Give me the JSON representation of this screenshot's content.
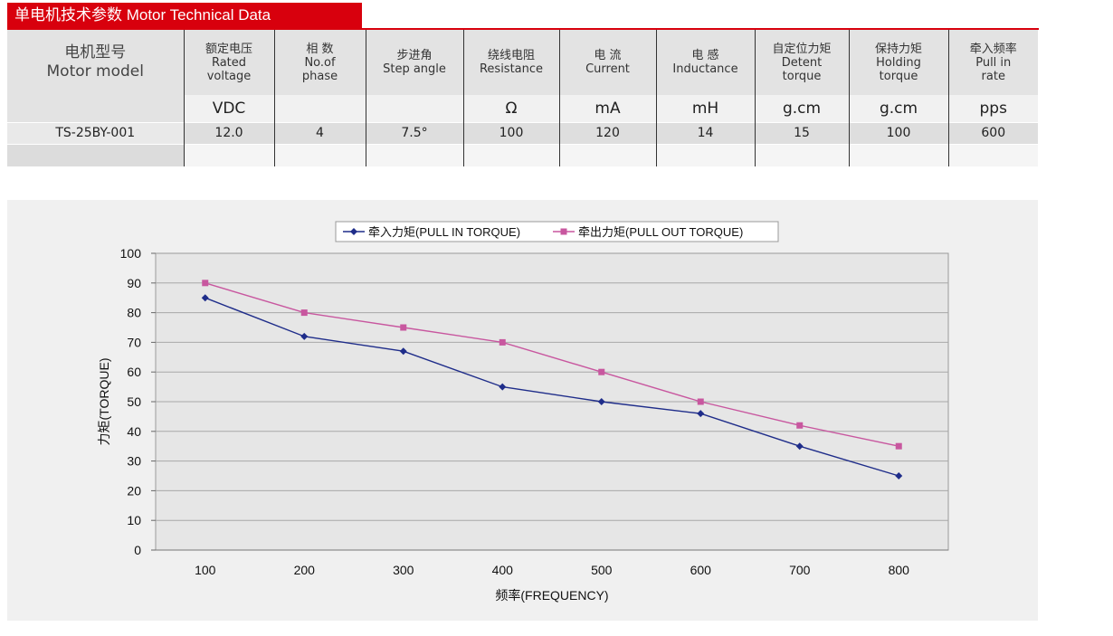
{
  "header": {
    "title": "单电机技术参数 Motor Technical Data"
  },
  "table": {
    "columns": [
      {
        "line1": "电机型号",
        "line2": "Motor model",
        "line3": "",
        "unit": ""
      },
      {
        "line1": "额定电压",
        "line2": "Rated",
        "line3": "voltage",
        "unit": "VDC"
      },
      {
        "line1": "相 数",
        "line2": "No.of",
        "line3": "phase",
        "unit": ""
      },
      {
        "line1": "步进角",
        "line2": "Step angle",
        "line3": "",
        "unit": ""
      },
      {
        "line1": "绕线电阻",
        "line2": "Resistance",
        "line3": "",
        "unit": "Ω"
      },
      {
        "line1": "电 流",
        "line2": "Current",
        "line3": "",
        "unit": "mA"
      },
      {
        "line1": "电 感",
        "line2": "Inductance",
        "line3": "",
        "unit": "mH"
      },
      {
        "line1": "自定位力矩",
        "line2": "Detent",
        "line3": "torque",
        "unit": "g.cm"
      },
      {
        "line1": "保持力矩",
        "line2": "Holding",
        "line3": "torque",
        "unit": "g.cm"
      },
      {
        "line1": "牵入频率",
        "line2": "Pull in",
        "line3": "rate",
        "unit": "pps"
      }
    ],
    "rows": [
      [
        "TS-25BY-001",
        "12.0",
        "4",
        "7.5°",
        "100",
        "120",
        "14",
        "15",
        "100",
        "600"
      ]
    ]
  },
  "chart_data": {
    "type": "line",
    "x": [
      100,
      200,
      300,
      400,
      500,
      600,
      700,
      800
    ],
    "series": [
      {
        "name": "牵入力矩(PULL IN TORQUE)",
        "color": "#1f2d8a",
        "marker": "diamond",
        "values": [
          85,
          72,
          67,
          55,
          50,
          46,
          35,
          25
        ]
      },
      {
        "name": "牵出力矩(PULL OUT TORQUE)",
        "color": "#c8579f",
        "marker": "square",
        "values": [
          90,
          80,
          75,
          70,
          60,
          50,
          42,
          35
        ]
      }
    ],
    "xlabel": "频率(FREQUENCY)",
    "ylabel": "力矩(TORQUE)",
    "ylim": [
      0,
      100
    ],
    "yticks": [
      0,
      10,
      20,
      30,
      40,
      50,
      60,
      70,
      80,
      90,
      100
    ],
    "grid": true,
    "legend_position": "top-center",
    "plot_background": "#e6e6e6"
  }
}
